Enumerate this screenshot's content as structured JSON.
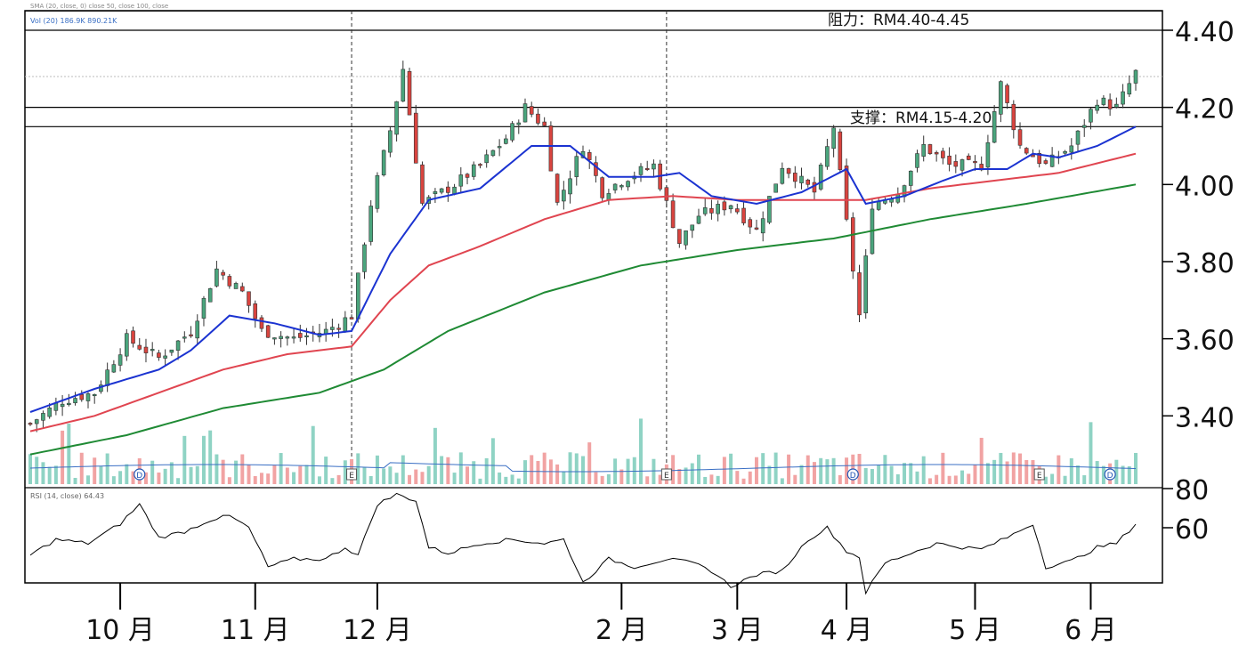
{
  "chart_data": {
    "type": "candlestick",
    "months": [
      {
        "label": "10 月",
        "index": 14
      },
      {
        "label": "11 月",
        "index": 35
      },
      {
        "label": "12 月",
        "index": 54
      },
      {
        "label": "2 月",
        "index": 92
      },
      {
        "label": "3 月",
        "index": 110
      },
      {
        "label": "4 月",
        "index": 127
      },
      {
        "label": "5 月",
        "index": 147
      },
      {
        "label": "6 月",
        "index": 165
      }
    ],
    "price_axis": {
      "range": [
        3.3,
        4.45
      ],
      "ticks": [
        "4.40",
        "4.20",
        "4.00",
        "3.80",
        "3.60",
        "3.40"
      ]
    },
    "rsi_axis": {
      "range": [
        20,
        90
      ],
      "ticks": [
        "80",
        "60"
      ]
    },
    "legend": {
      "moving_averages": "SMA (20, close, 0) close  50, close  100, close",
      "volume": "Vol (20)  186.9K  890.21K",
      "rsi": "RSI (14, close)  64.43"
    },
    "resistance": {
      "label": "阻力：RM4.40-4.45",
      "levels": [
        4.4,
        4.45
      ]
    },
    "support": {
      "label": "支撑：RM4.15-4.20",
      "levels": [
        4.15,
        4.2
      ]
    },
    "reference_line": 4.28,
    "event_markers": [
      {
        "label": "D",
        "index": 17
      },
      {
        "label": "E",
        "index": 50
      },
      {
        "label": "E",
        "index": 99
      },
      {
        "label": "D",
        "index": 128
      },
      {
        "label": "E",
        "index": 157
      },
      {
        "label": "D",
        "index": 168
      }
    ],
    "event_lines": [
      50,
      99
    ],
    "price_anchors": [
      [
        0,
        3.38
      ],
      [
        5,
        3.44
      ],
      [
        10,
        3.46
      ],
      [
        15,
        3.6
      ],
      [
        20,
        3.55
      ],
      [
        25,
        3.62
      ],
      [
        29,
        3.78
      ],
      [
        33,
        3.72
      ],
      [
        36,
        3.62
      ],
      [
        41,
        3.6
      ],
      [
        46,
        3.62
      ],
      [
        50,
        3.66
      ],
      [
        53,
        3.95
      ],
      [
        56,
        4.14
      ],
      [
        58,
        4.3
      ],
      [
        61,
        3.95
      ],
      [
        66,
        4.0
      ],
      [
        70,
        4.05
      ],
      [
        74,
        4.12
      ],
      [
        77,
        4.2
      ],
      [
        80,
        4.15
      ],
      [
        82,
        3.95
      ],
      [
        86,
        4.1
      ],
      [
        89,
        3.98
      ],
      [
        93,
        4.02
      ],
      [
        97,
        4.05
      ],
      [
        101,
        3.85
      ],
      [
        104,
        3.92
      ],
      [
        109,
        3.95
      ],
      [
        113,
        3.88
      ],
      [
        117,
        4.05
      ],
      [
        122,
        3.98
      ],
      [
        125,
        4.15
      ],
      [
        127,
        3.9
      ],
      [
        129,
        3.66
      ],
      [
        131,
        3.95
      ],
      [
        135,
        3.98
      ],
      [
        139,
        4.1
      ],
      [
        143,
        4.05
      ],
      [
        148,
        4.05
      ],
      [
        151,
        4.26
      ],
      [
        154,
        4.1
      ],
      [
        158,
        4.05
      ],
      [
        162,
        4.1
      ],
      [
        166,
        4.22
      ],
      [
        169,
        4.2
      ],
      [
        172,
        4.29
      ]
    ],
    "sma_fast_anchors": [
      [
        0,
        3.41
      ],
      [
        10,
        3.47
      ],
      [
        20,
        3.52
      ],
      [
        25,
        3.57
      ],
      [
        31,
        3.66
      ],
      [
        38,
        3.64
      ],
      [
        45,
        3.61
      ],
      [
        50,
        3.62
      ],
      [
        56,
        3.82
      ],
      [
        62,
        3.96
      ],
      [
        70,
        3.99
      ],
      [
        78,
        4.1
      ],
      [
        84,
        4.1
      ],
      [
        90,
        4.02
      ],
      [
        97,
        4.02
      ],
      [
        101,
        4.03
      ],
      [
        106,
        3.97
      ],
      [
        113,
        3.95
      ],
      [
        120,
        3.98
      ],
      [
        127,
        4.04
      ],
      [
        130,
        3.95
      ],
      [
        136,
        3.97
      ],
      [
        142,
        4.01
      ],
      [
        147,
        4.04
      ],
      [
        152,
        4.04
      ],
      [
        156,
        4.08
      ],
      [
        160,
        4.07
      ],
      [
        166,
        4.1
      ],
      [
        172,
        4.15
      ]
    ],
    "sma_mid_anchors": [
      [
        0,
        3.36
      ],
      [
        10,
        3.4
      ],
      [
        20,
        3.46
      ],
      [
        30,
        3.52
      ],
      [
        40,
        3.56
      ],
      [
        50,
        3.58
      ],
      [
        56,
        3.7
      ],
      [
        62,
        3.79
      ],
      [
        70,
        3.84
      ],
      [
        80,
        3.91
      ],
      [
        90,
        3.96
      ],
      [
        100,
        3.97
      ],
      [
        110,
        3.96
      ],
      [
        120,
        3.96
      ],
      [
        130,
        3.96
      ],
      [
        140,
        3.99
      ],
      [
        150,
        4.01
      ],
      [
        160,
        4.03
      ],
      [
        172,
        4.08
      ]
    ],
    "sma_slow_anchors": [
      [
        0,
        3.3
      ],
      [
        15,
        3.35
      ],
      [
        30,
        3.42
      ],
      [
        45,
        3.46
      ],
      [
        55,
        3.52
      ],
      [
        65,
        3.62
      ],
      [
        80,
        3.72
      ],
      [
        95,
        3.79
      ],
      [
        110,
        3.83
      ],
      [
        125,
        3.86
      ],
      [
        140,
        3.91
      ],
      [
        155,
        3.95
      ],
      [
        172,
        4.0
      ]
    ],
    "rsi_anchors": [
      [
        0,
        46
      ],
      [
        4,
        54
      ],
      [
        9,
        52
      ],
      [
        14,
        62
      ],
      [
        17,
        72
      ],
      [
        20,
        55
      ],
      [
        24,
        58
      ],
      [
        28,
        64
      ],
      [
        31,
        66
      ],
      [
        34,
        60
      ],
      [
        37,
        40
      ],
      [
        41,
        44
      ],
      [
        46,
        44
      ],
      [
        49,
        50
      ],
      [
        51,
        46
      ],
      [
        54,
        72
      ],
      [
        57,
        77
      ],
      [
        60,
        74
      ],
      [
        62,
        50
      ],
      [
        65,
        47
      ],
      [
        70,
        52
      ],
      [
        75,
        54
      ],
      [
        80,
        52
      ],
      [
        83,
        54
      ],
      [
        86,
        32
      ],
      [
        90,
        44
      ],
      [
        94,
        40
      ],
      [
        99,
        44
      ],
      [
        103,
        42
      ],
      [
        106,
        38
      ],
      [
        109,
        30
      ],
      [
        113,
        36
      ],
      [
        117,
        38
      ],
      [
        121,
        54
      ],
      [
        124,
        60
      ],
      [
        127,
        48
      ],
      [
        129,
        45
      ],
      [
        130,
        27
      ],
      [
        133,
        42
      ],
      [
        137,
        47
      ],
      [
        141,
        52
      ],
      [
        145,
        50
      ],
      [
        148,
        49
      ],
      [
        152,
        55
      ],
      [
        156,
        62
      ],
      [
        158,
        40
      ],
      [
        162,
        43
      ],
      [
        166,
        50
      ],
      [
        169,
        52
      ],
      [
        172,
        62
      ]
    ]
  }
}
